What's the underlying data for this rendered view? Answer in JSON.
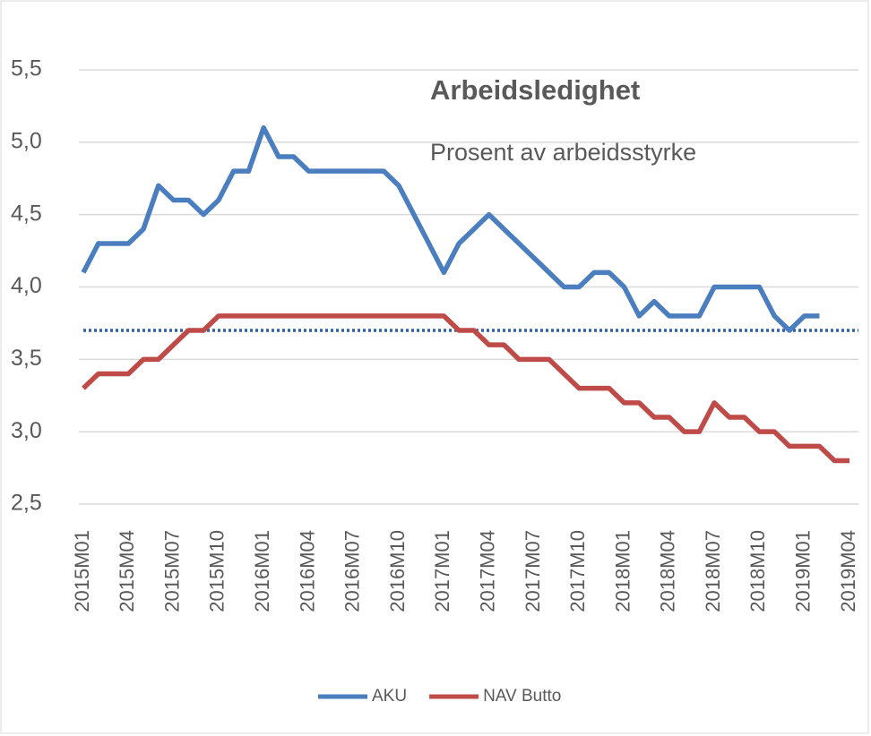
{
  "chart_data": {
    "type": "line",
    "title": "Arbeidsledighet",
    "subtitle": "Prosent av arbeidsstyrke",
    "categories": [
      "2015M01",
      null,
      null,
      "2015M04",
      null,
      null,
      "2015M07",
      null,
      null,
      "2015M10",
      null,
      null,
      "2016M01",
      null,
      null,
      "2016M04",
      null,
      null,
      "2016M07",
      null,
      null,
      "2016M10",
      null,
      null,
      "2017M01",
      null,
      null,
      "2017M04",
      null,
      null,
      "2017M07",
      null,
      null,
      "2017M10",
      null,
      null,
      "2018M01",
      null,
      null,
      "2018M04",
      null,
      null,
      "2018M07",
      null,
      null,
      "2018M10",
      null,
      null,
      "2019M01",
      null,
      null,
      "2019M04"
    ],
    "series": [
      {
        "name": "AKU",
        "color": "#4a7ebf",
        "values": [
          4.1,
          4.3,
          4.3,
          4.3,
          4.4,
          4.7,
          4.6,
          4.6,
          4.5,
          4.6,
          4.8,
          4.8,
          5.1,
          4.9,
          4.9,
          4.8,
          4.8,
          4.8,
          4.8,
          4.8,
          4.8,
          4.7,
          4.5,
          4.3,
          4.1,
          4.3,
          4.4,
          4.5,
          4.4,
          4.3,
          4.2,
          4.1,
          4.0,
          4.0,
          4.1,
          4.1,
          4.0,
          3.8,
          3.9,
          3.8,
          3.8,
          3.8,
          4.0,
          4.0,
          4.0,
          4.0,
          3.8,
          3.7,
          3.8,
          3.8,
          null,
          null
        ]
      },
      {
        "name": "NAV Butto",
        "color": "#be4b48",
        "values": [
          3.3,
          3.4,
          3.4,
          3.4,
          3.5,
          3.5,
          3.6,
          3.7,
          3.7,
          3.8,
          3.8,
          3.8,
          3.8,
          3.8,
          3.8,
          3.8,
          3.8,
          3.8,
          3.8,
          3.8,
          3.8,
          3.8,
          3.8,
          3.8,
          3.8,
          3.7,
          3.7,
          3.6,
          3.6,
          3.5,
          3.5,
          3.5,
          3.4,
          3.3,
          3.3,
          3.3,
          3.2,
          3.2,
          3.1,
          3.1,
          3.0,
          3.0,
          3.2,
          3.1,
          3.1,
          3.0,
          3.0,
          2.9,
          2.9,
          2.9,
          2.8,
          2.8
        ]
      }
    ],
    "reference_line": {
      "value": 3.7,
      "color": "#2f5fa8"
    },
    "ylim": [
      2.5,
      5.5
    ],
    "yticks": [
      {
        "value": 2.5,
        "label": "2,5"
      },
      {
        "value": 3.0,
        "label": "3,0"
      },
      {
        "value": 3.5,
        "label": "3,5"
      },
      {
        "value": 4.0,
        "label": "4,0"
      },
      {
        "value": 4.5,
        "label": "4,5"
      },
      {
        "value": 5.0,
        "label": "5,0"
      },
      {
        "value": 5.5,
        "label": "5,5"
      }
    ],
    "grid": true,
    "legend": "bottom"
  }
}
